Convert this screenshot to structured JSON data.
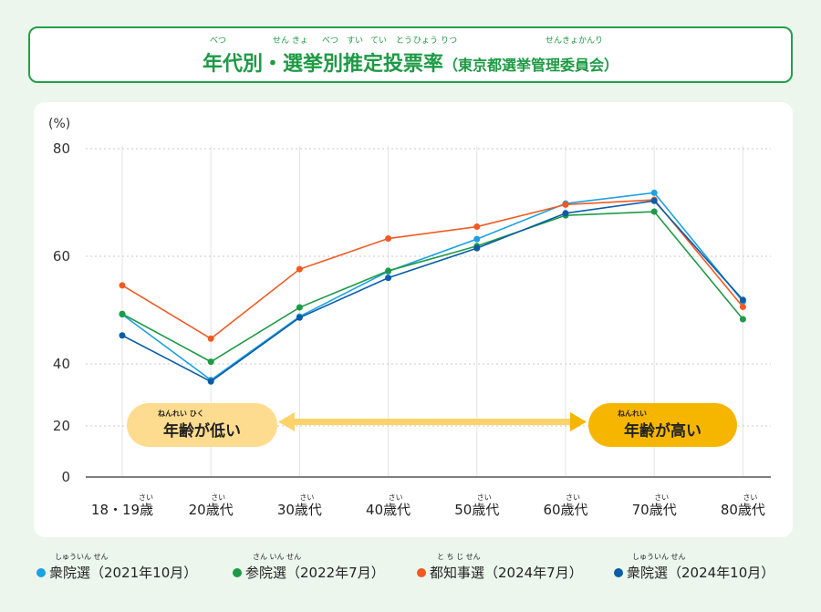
{
  "header": {
    "title": "年代別・選挙別推定投票率",
    "subtitle": "（東京都選挙管理委員会）",
    "title_ruby": [
      "べつ",
      "せん きょ",
      "べつ",
      "すい",
      "てい",
      "とう",
      "ひょう",
      "りつ"
    ],
    "subtitle_ruby": "せんきょかんり"
  },
  "chart_data": {
    "type": "line",
    "unit_label": "(%)",
    "categories": [
      "18・19歳",
      "20歳代",
      "30歳代",
      "40歳代",
      "50歳代",
      "60歳代",
      "70歳代",
      "80歳代"
    ],
    "category_ruby": "さい",
    "y_ticks": [
      0,
      20,
      40,
      60,
      80
    ],
    "ylim": [
      0,
      80
    ],
    "axis_break": "between 20 and 40",
    "grid": true,
    "legend_position": "bottom",
    "series": [
      {
        "name": "衆院選（2021年10月）",
        "ruby": "しゅういん せん",
        "color": "#1ca1e2",
        "values": [
          49.2,
          38.0,
          48.8,
          57.2,
          63.2,
          69.8,
          71.8,
          51.6
        ]
      },
      {
        "name": "参院選（2022年7月）",
        "ruby": "さん いん せん",
        "color": "#1e9a45",
        "values": [
          49.3,
          40.4,
          50.5,
          57.3,
          61.9,
          67.6,
          68.3,
          48.3
        ]
      },
      {
        "name": "都知事選（2024年7月）",
        "ruby": "と ち じ せん",
        "color": "#f05a22",
        "values": [
          54.6,
          44.7,
          57.6,
          63.3,
          65.5,
          69.6,
          70.5,
          50.6
        ]
      },
      {
        "name": "衆院選（2024年10月）",
        "ruby": "しゅういん せん",
        "color": "#0b5ca8",
        "values": [
          45.3,
          37.4,
          48.6,
          56.0,
          61.5,
          68.0,
          70.3,
          51.9
        ]
      }
    ]
  },
  "annotations": {
    "low_age": {
      "text": "年齢が低い",
      "ruby": "ねんれい   ひく"
    },
    "high_age": {
      "text": "年齢が高い",
      "ruby": "ねんれい"
    }
  }
}
